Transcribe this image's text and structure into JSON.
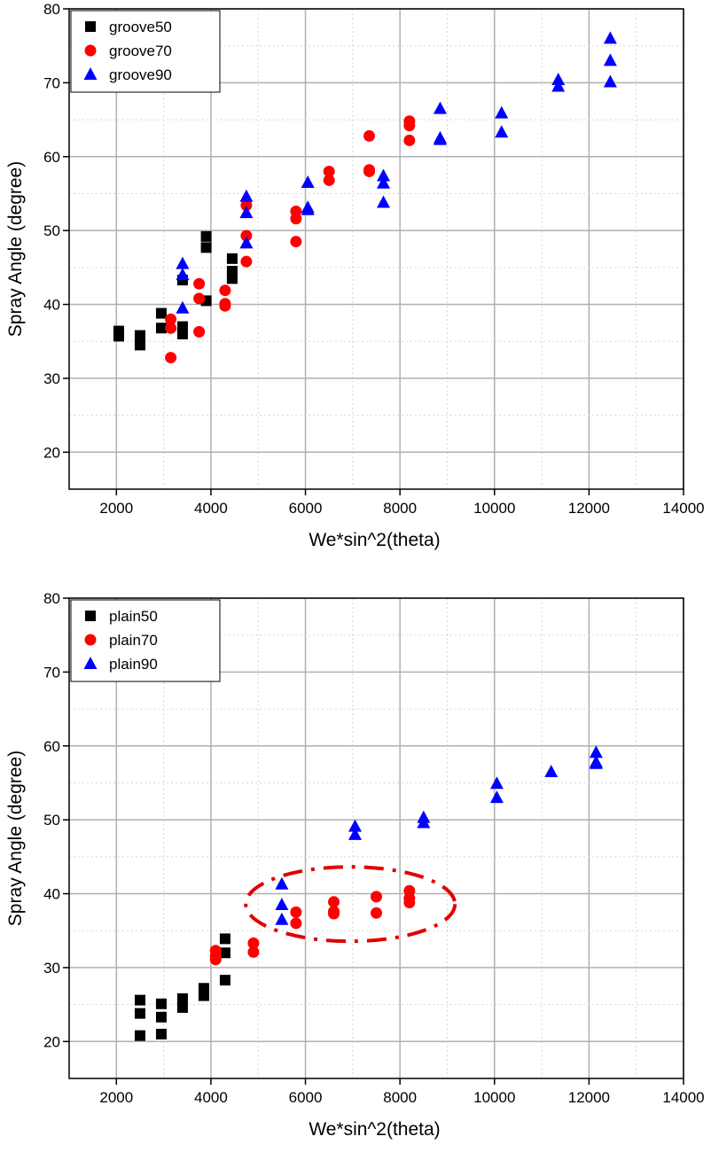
{
  "chart_data": [
    {
      "type": "scatter",
      "xlabel": "We*sin^2(theta)",
      "ylabel": "Spray Angle (degree)",
      "xlim": [
        1000,
        14000
      ],
      "ylim": [
        15,
        80
      ],
      "xticks": [
        2000,
        4000,
        6000,
        8000,
        10000,
        12000,
        14000
      ],
      "yticks": [
        20,
        30,
        40,
        50,
        60,
        70,
        80
      ],
      "grid": true,
      "legend_position": "top-left",
      "series": [
        {
          "name": "groove50",
          "marker": "square",
          "color": "#000000",
          "points": [
            [
              2050,
              36.4
            ],
            [
              2050,
              35.7
            ],
            [
              2500,
              35.8
            ],
            [
              2500,
              34.5
            ],
            [
              2500,
              35.2
            ],
            [
              2950,
              38.8
            ],
            [
              2950,
              36.8
            ],
            [
              3400,
              43.3
            ],
            [
              3400,
              37
            ],
            [
              3400,
              36
            ],
            [
              3900,
              49.2
            ],
            [
              3900,
              47.7
            ],
            [
              3900,
              40.5
            ],
            [
              4450,
              46.2
            ],
            [
              4450,
              44.5
            ],
            [
              4450,
              43.5
            ]
          ]
        },
        {
          "name": "groove70",
          "marker": "circle",
          "color": "#ff0000",
          "points": [
            [
              3150,
              38
            ],
            [
              3150,
              36.8
            ],
            [
              3150,
              32.8
            ],
            [
              3750,
              42.8
            ],
            [
              3750,
              40.8
            ],
            [
              3750,
              36.3
            ],
            [
              4300,
              41.9
            ],
            [
              4300,
              40.1
            ],
            [
              4300,
              39.8
            ],
            [
              4750,
              53.4
            ],
            [
              4750,
              49.3
            ],
            [
              4750,
              45.8
            ],
            [
              5800,
              52.6
            ],
            [
              5800,
              51.6
            ],
            [
              5800,
              48.5
            ],
            [
              6500,
              58
            ],
            [
              6500,
              56.8
            ],
            [
              7350,
              62.8
            ],
            [
              7350,
              58.2
            ],
            [
              7350,
              58
            ],
            [
              8200,
              64.8
            ],
            [
              8200,
              64.2
            ],
            [
              8200,
              62.2
            ]
          ]
        },
        {
          "name": "groove90",
          "marker": "triangle",
          "color": "#0000ff",
          "points": [
            [
              3400,
              45.5
            ],
            [
              3400,
              44
            ],
            [
              3400,
              39.5
            ],
            [
              4750,
              54.6
            ],
            [
              4750,
              52.4
            ],
            [
              4750,
              48.3
            ],
            [
              6050,
              56.5
            ],
            [
              6050,
              53.1
            ],
            [
              6050,
              52.8
            ],
            [
              7650,
              57.4
            ],
            [
              7650,
              56.4
            ],
            [
              7650,
              53.8
            ],
            [
              8850,
              66.5
            ],
            [
              8850,
              62.5
            ],
            [
              8850,
              62.3
            ],
            [
              10150,
              65.9
            ],
            [
              10150,
              63.3
            ],
            [
              11350,
              70.4
            ],
            [
              11350,
              69.5
            ],
            [
              12450,
              76
            ],
            [
              12450,
              73
            ],
            [
              12450,
              70.1
            ]
          ]
        }
      ]
    },
    {
      "type": "scatter",
      "xlabel": "We*sin^2(theta)",
      "ylabel": "Spray Angle (degree)",
      "xlim": [
        1000,
        14000
      ],
      "ylim": [
        15,
        80
      ],
      "xticks": [
        2000,
        4000,
        6000,
        8000,
        10000,
        12000,
        14000
      ],
      "yticks": [
        20,
        30,
        40,
        50,
        60,
        70,
        80
      ],
      "grid": true,
      "legend_position": "top-left",
      "annotation": "red dash-dot ellipse around plain70 cluster",
      "series": [
        {
          "name": "plain50",
          "marker": "square",
          "color": "#000000",
          "points": [
            [
              2500,
              25.6
            ],
            [
              2500,
              23.8
            ],
            [
              2500,
              20.8
            ],
            [
              2950,
              25.1
            ],
            [
              2950,
              23.3
            ],
            [
              2950,
              21
            ],
            [
              3400,
              25.8
            ],
            [
              3400,
              24.6
            ],
            [
              3850,
              27.2
            ],
            [
              3850,
              26.2
            ],
            [
              4300,
              33.9
            ],
            [
              4300,
              32
            ],
            [
              4300,
              28.3
            ]
          ]
        },
        {
          "name": "plain70",
          "marker": "circle",
          "color": "#ff0000",
          "points": [
            [
              4100,
              32.3
            ],
            [
              4100,
              31.6
            ],
            [
              4100,
              31.1
            ],
            [
              4900,
              33.3
            ],
            [
              4900,
              32.1
            ],
            [
              5800,
              37.5
            ],
            [
              5800,
              36
            ],
            [
              6600,
              38.9
            ],
            [
              6600,
              37.6
            ],
            [
              6600,
              37.3
            ],
            [
              7500,
              39.6
            ],
            [
              7500,
              37.4
            ],
            [
              8200,
              40.4
            ],
            [
              8200,
              39.4
            ],
            [
              8200,
              38.8
            ]
          ]
        },
        {
          "name": "plain90",
          "marker": "triangle",
          "color": "#0000ff",
          "points": [
            [
              5500,
              41.3
            ],
            [
              5500,
              38.5
            ],
            [
              5500,
              36.5
            ],
            [
              7050,
              49.1
            ],
            [
              7050,
              48
            ],
            [
              8500,
              50.3
            ],
            [
              8500,
              49.6
            ],
            [
              10050,
              54.9
            ],
            [
              10050,
              53
            ],
            [
              11200,
              56.5
            ],
            [
              12150,
              59.1
            ],
            [
              12150,
              57.8
            ],
            [
              12150,
              57.6
            ]
          ]
        }
      ]
    }
  ]
}
